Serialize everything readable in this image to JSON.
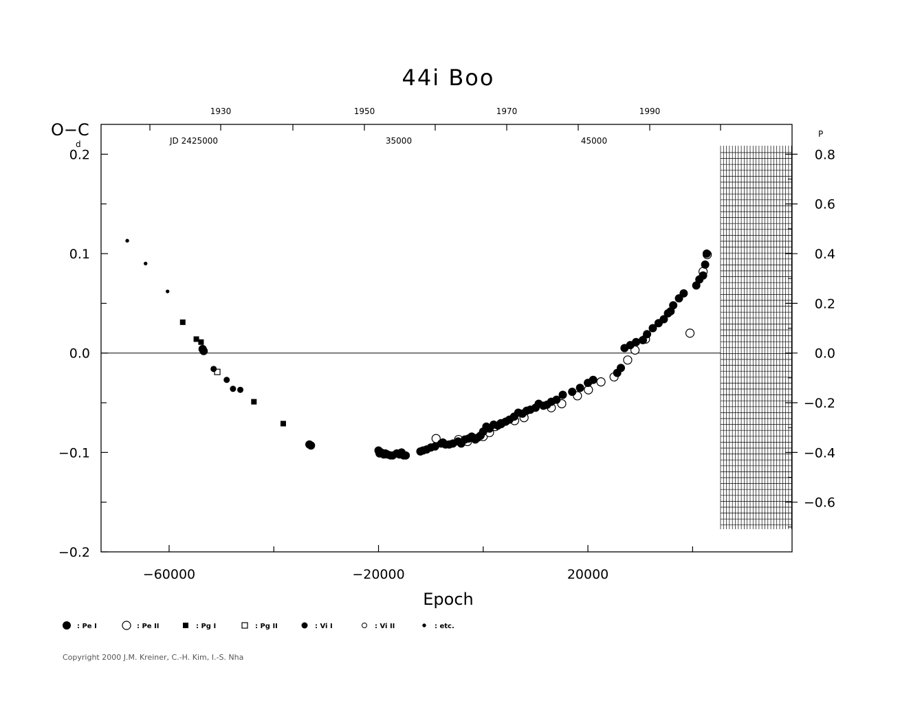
{
  "chart_data": {
    "type": "scatter",
    "title": "44i  Boo",
    "xlabel": "Epoch",
    "ylabel": "O−C",
    "y_unit_superscript": "d",
    "y2_unit_superscript": "P",
    "xlim": [
      -73000,
      59000
    ],
    "ylim": [
      -0.2,
      0.23
    ],
    "x_ticks": [
      -60000,
      -20000,
      20000
    ],
    "x_tick_labels": [
      "−60000",
      "−20000",
      "20000"
    ],
    "y_ticks": [
      -0.2,
      -0.1,
      0.0,
      0.1,
      0.2
    ],
    "y_tick_labels": [
      "−0.2",
      "−0.1",
      "0.0",
      "0.1",
      "0.2"
    ],
    "y2_ticks": [
      -0.6,
      -0.4,
      -0.2,
      0.0,
      0.2,
      0.4,
      0.6,
      0.8
    ],
    "y2_tick_labels": [
      "−0.6",
      "−0.4",
      "−0.2",
      "0.0",
      "0.2",
      "0.4",
      "0.6",
      "0.8"
    ],
    "top_year_labels": [
      "1930",
      "1950",
      "1970",
      "1990"
    ],
    "top_jd_labels": [
      "JD  2425000",
      "35000",
      "45000"
    ],
    "zero_line": true,
    "series": [
      {
        "name": "Pe I",
        "marker": "filled-circle-large",
        "x": [
          -53600,
          -53400,
          -33200,
          -32900,
          -20000,
          -19800,
          -19500,
          -19000,
          -18700,
          -18300,
          -17700,
          -17300,
          -16500,
          -16000,
          -15600,
          -15200,
          -14800,
          -12000,
          -11500,
          -10800,
          -10000,
          -9200,
          -8000,
          -7700,
          -7200,
          -6500,
          -5800,
          -4800,
          -4200,
          -3500,
          -2800,
          -2200,
          -1500,
          -1000,
          -500,
          0,
          600,
          1200,
          2000,
          2800,
          3500,
          4300,
          5000,
          5900,
          6700,
          7500,
          8300,
          9000,
          10000,
          10600,
          11500,
          12200,
          13000,
          14000,
          15200,
          17000,
          18500,
          20000,
          21000,
          25600,
          26300,
          27000,
          28100,
          29200,
          30500,
          31300,
          32400,
          33500,
          34500,
          35300,
          35800,
          36300,
          37400,
          38300,
          40700,
          41300,
          42000,
          42400,
          42700
        ],
        "y": [
          0.004,
          0.002,
          -0.092,
          -0.093,
          -0.098,
          -0.101,
          -0.1,
          -0.102,
          -0.101,
          -0.102,
          -0.103,
          -0.103,
          -0.101,
          -0.102,
          -0.1,
          -0.103,
          -0.103,
          -0.099,
          -0.098,
          -0.097,
          -0.095,
          -0.094,
          -0.091,
          -0.09,
          -0.092,
          -0.092,
          -0.091,
          -0.089,
          -0.091,
          -0.087,
          -0.086,
          -0.084,
          -0.087,
          -0.085,
          -0.083,
          -0.079,
          -0.074,
          -0.076,
          -0.072,
          -0.073,
          -0.071,
          -0.069,
          -0.067,
          -0.064,
          -0.06,
          -0.061,
          -0.058,
          -0.057,
          -0.055,
          -0.051,
          -0.053,
          -0.052,
          -0.049,
          -0.047,
          -0.042,
          -0.039,
          -0.035,
          -0.03,
          -0.027,
          -0.02,
          -0.015,
          0.005,
          0.008,
          0.011,
          0.013,
          0.019,
          0.025,
          0.03,
          0.034,
          0.04,
          0.042,
          0.048,
          0.055,
          0.06,
          0.068,
          0.074,
          0.078,
          0.089,
          0.1
        ]
      },
      {
        "name": "Pe II",
        "marker": "open-circle-large",
        "x": [
          -9000,
          -4700,
          -3000,
          0,
          1200,
          2300,
          3400,
          6000,
          7800,
          13000,
          15000,
          18000,
          20100,
          22500,
          25000,
          27600,
          29000,
          31000,
          39500,
          42000,
          42800
        ],
        "y": [
          -0.086,
          -0.087,
          -0.089,
          -0.084,
          -0.08,
          -0.074,
          -0.071,
          -0.068,
          -0.065,
          -0.055,
          -0.051,
          -0.043,
          -0.037,
          -0.029,
          -0.024,
          -0.007,
          0.003,
          0.014,
          0.02,
          0.082,
          0.099
        ]
      },
      {
        "name": "Pg I",
        "marker": "filled-square",
        "x": [
          -57400,
          -54800,
          -53900,
          -43800,
          -38200
        ],
        "y": [
          0.031,
          0.014,
          0.011,
          -0.049,
          -0.071
        ]
      },
      {
        "name": "Pg II",
        "marker": "open-square",
        "x": [
          -50800
        ],
        "y": [
          -0.019
        ]
      },
      {
        "name": "Vi I",
        "marker": "filled-circle-medium",
        "x": [
          -51500,
          -49000,
          -47800,
          -46400
        ],
        "y": [
          -0.016,
          -0.027,
          -0.036,
          -0.037
        ]
      },
      {
        "name": "Vi II",
        "marker": "open-circle-small",
        "x": [],
        "y": []
      },
      {
        "name": "etc.",
        "marker": "dot-small",
        "x": [
          -68000,
          -64500,
          -60300
        ],
        "y": [
          0.113,
          0.09,
          0.062
        ]
      }
    ]
  },
  "legend": [
    {
      "marker": "filled-circle-large",
      "label": ": Pe  I"
    },
    {
      "marker": "open-circle-large",
      "label": ": Pe  II"
    },
    {
      "marker": "filled-square",
      "label": ": Pg  I"
    },
    {
      "marker": "open-square",
      "label": ": Pg  II"
    },
    {
      "marker": "filled-circle-medium",
      "label": ": Vi  I"
    },
    {
      "marker": "open-circle-small",
      "label": ": Vi  II"
    },
    {
      "marker": "dot-small",
      "label": ": etc."
    }
  ],
  "copyright": "Copyright 2000 J.M. Kreiner, C.-H. Kim, I.-S. Nha"
}
